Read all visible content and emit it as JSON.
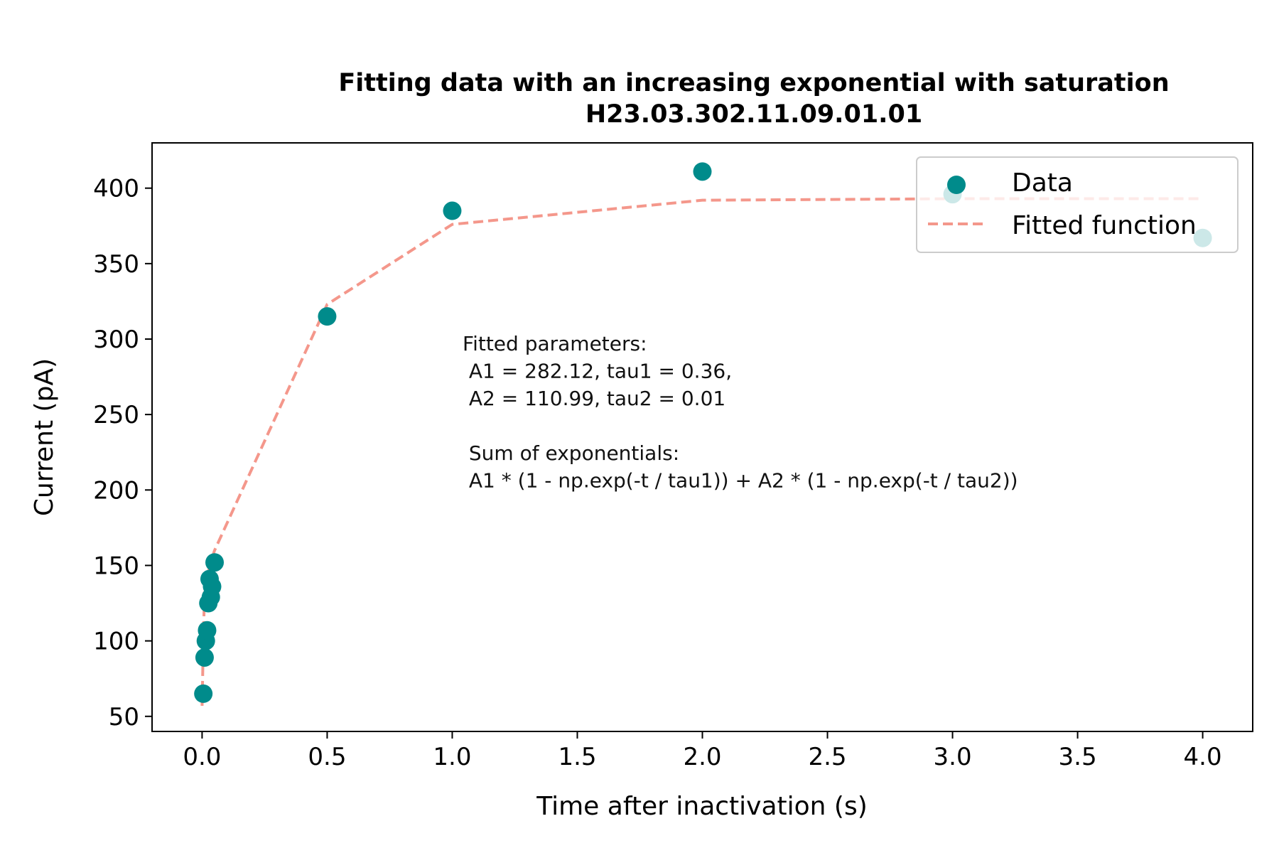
{
  "chart_data": {
    "type": "scatter",
    "title": "Fitting data with an increasing exponential with saturation",
    "subtitle": "H23.03.302.11.09.01.01",
    "xlabel": "Time after inactivation (s)",
    "ylabel": "Current (pA)",
    "xlim": [
      -0.2,
      4.2
    ],
    "ylim": [
      40,
      430
    ],
    "xticks": [
      0.0,
      0.5,
      1.0,
      1.5,
      2.0,
      2.5,
      3.0,
      3.5,
      4.0
    ],
    "xtick_labels": [
      "0.0",
      "0.5",
      "1.0",
      "1.5",
      "2.0",
      "2.5",
      "3.0",
      "3.5",
      "4.0"
    ],
    "yticks": [
      50,
      100,
      150,
      200,
      250,
      300,
      350,
      400
    ],
    "ytick_labels": [
      "50",
      "100",
      "150",
      "200",
      "250",
      "300",
      "350",
      "400"
    ],
    "grid": false,
    "legend_position": "top-right",
    "series": [
      {
        "name": "Data",
        "kind": "scatter",
        "color": "#008b8b",
        "x": [
          0.005,
          0.01,
          0.015,
          0.02,
          0.025,
          0.03,
          0.035,
          0.04,
          0.05,
          0.5,
          1.0,
          2.0,
          3.0,
          4.0
        ],
        "y": [
          65,
          89,
          100,
          107,
          125,
          141,
          129,
          136,
          152,
          315,
          385,
          411,
          396,
          367
        ]
      },
      {
        "name": "Fitted function",
        "kind": "line",
        "dash": "dashed",
        "color": "#f4978b",
        "x": [
          0.0,
          0.005,
          0.01,
          0.02,
          0.03,
          0.05,
          0.5,
          1.0,
          2.0,
          3.0,
          4.0
        ],
        "y": [
          57,
          100,
          135,
          140,
          150,
          160,
          323,
          376,
          392,
          393,
          393
        ]
      }
    ],
    "annotation": [
      "Fitted parameters:",
      " A1 = 282.12, tau1 = 0.36,",
      " A2 = 110.99, tau2 = 0.01",
      "",
      " Sum of exponentials:",
      " A1 * (1 - np.exp(-t / tau1)) + A2 * (1 - np.exp(-t / tau2))"
    ]
  }
}
